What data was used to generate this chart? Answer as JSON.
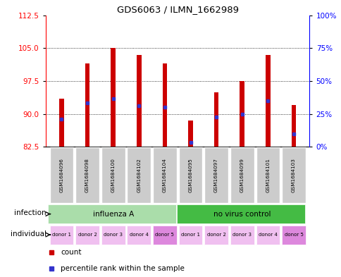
{
  "title": "GDS6063 / ILMN_1662989",
  "samples": [
    "GSM1684096",
    "GSM1684098",
    "GSM1684100",
    "GSM1684102",
    "GSM1684104",
    "GSM1684095",
    "GSM1684097",
    "GSM1684099",
    "GSM1684101",
    "GSM1684103"
  ],
  "bar_bottoms": [
    82.5,
    82.5,
    82.5,
    82.5,
    82.5,
    82.5,
    82.5,
    82.5,
    82.5,
    82.5
  ],
  "bar_tops": [
    93.5,
    101.5,
    105.0,
    103.5,
    101.5,
    88.5,
    95.0,
    97.5,
    103.5,
    92.0
  ],
  "blue_marker_values": [
    88.8,
    92.5,
    93.5,
    91.8,
    91.5,
    83.5,
    89.3,
    90.0,
    93.0,
    85.5
  ],
  "ylim_left": [
    82.5,
    112.5
  ],
  "ylim_right": [
    0,
    100
  ],
  "yticks_left": [
    82.5,
    90.0,
    97.5,
    105.0,
    112.5
  ],
  "yticks_right": [
    0,
    25,
    50,
    75,
    100
  ],
  "ytick_labels_right": [
    "0%",
    "25%",
    "50%",
    "75%",
    "100%"
  ],
  "bar_color": "#cc0000",
  "blue_color": "#3333cc",
  "infection_groups": [
    {
      "label": "influenza A",
      "start": 0,
      "end": 5,
      "color": "#aaddaa"
    },
    {
      "label": "no virus control",
      "start": 5,
      "end": 10,
      "color": "#44bb44"
    }
  ],
  "individual_labels": [
    "donor 1",
    "donor 2",
    "donor 3",
    "donor 4",
    "donor 5",
    "donor 1",
    "donor 2",
    "donor 3",
    "donor 4",
    "donor 5"
  ],
  "individual_colors": [
    "#f0c0f0",
    "#f0c0f0",
    "#f0c0f0",
    "#f0c0f0",
    "#dd88dd",
    "#f0c0f0",
    "#f0c0f0",
    "#f0c0f0",
    "#f0c0f0",
    "#dd88dd"
  ],
  "sample_bg_color": "#cccccc",
  "label_infection": "infection",
  "label_individual": "individual",
  "legend_count": "count",
  "legend_percentile": "percentile rank within the sample",
  "background_color": "#ffffff",
  "bar_width": 0.18
}
